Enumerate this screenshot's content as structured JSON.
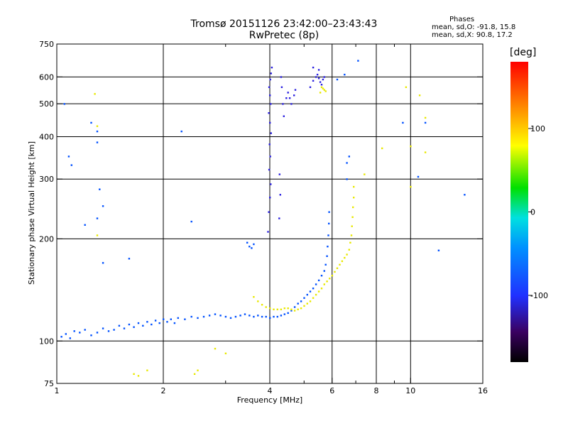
{
  "chart_data": {
    "type": "scatter",
    "title": "Tromsø 20151126 23:42:00–23:43:43",
    "subtitle": "RwPretec (8p)",
    "xlabel": "Frequency [MHz]",
    "ylabel": "Stationary phase Virtual Height [km]",
    "x_scale": "log",
    "y_scale": "log",
    "xlim": [
      1,
      16
    ],
    "ylim": [
      75,
      750
    ],
    "x_ticks": [
      1,
      2,
      4,
      6,
      8,
      10,
      16
    ],
    "x_tick_labels": [
      "1",
      "2",
      "4",
      "6",
      "8",
      "10",
      "16"
    ],
    "x_grid": [
      2,
      4,
      6,
      8,
      10
    ],
    "x_minor": [
      3,
      5,
      7,
      9
    ],
    "y_ticks": [
      75,
      100,
      200,
      300,
      400,
      500,
      600,
      750
    ],
    "y_tick_labels": [
      "75",
      "100",
      "200",
      "300",
      "400",
      "500",
      "600",
      "750"
    ],
    "y_grid": [
      100,
      200,
      300,
      400,
      500,
      600
    ],
    "grid": true,
    "phase_stats": {
      "heading": "Phases",
      "o_line": "mean, sd,O: -91.8, 15.8",
      "x_line": "mean, sd,X:  90.8, 17.2"
    },
    "colorbar": {
      "label": "[deg]",
      "range": [
        -180,
        180
      ],
      "ticks": [
        100,
        0,
        -100
      ],
      "tick_labels": [
        "100",
        "0",
        "-100"
      ],
      "colormap": "rainbow"
    },
    "traces": [
      {
        "kind": "O-mode F layer",
        "phase": -95,
        "points": [
          [
            1.03,
            103
          ],
          [
            1.06,
            105
          ],
          [
            1.09,
            102
          ],
          [
            1.12,
            107
          ],
          [
            1.16,
            106
          ],
          [
            1.2,
            108
          ],
          [
            1.25,
            104
          ],
          [
            1.3,
            106
          ],
          [
            1.35,
            109
          ],
          [
            1.4,
            107
          ],
          [
            1.45,
            108
          ],
          [
            1.5,
            111
          ],
          [
            1.55,
            109
          ],
          [
            1.6,
            112
          ],
          [
            1.65,
            110
          ],
          [
            1.7,
            113
          ],
          [
            1.75,
            111
          ],
          [
            1.8,
            114
          ],
          [
            1.85,
            112
          ],
          [
            1.9,
            115
          ],
          [
            1.95,
            113
          ],
          [
            2.0,
            116
          ],
          [
            2.05,
            114
          ],
          [
            2.1,
            116
          ],
          [
            2.15,
            113
          ],
          [
            2.2,
            117
          ],
          [
            2.3,
            116
          ],
          [
            2.4,
            118
          ],
          [
            2.5,
            117
          ],
          [
            2.6,
            118
          ],
          [
            2.7,
            119
          ],
          [
            2.8,
            120
          ],
          [
            2.9,
            119
          ],
          [
            3.0,
            118
          ],
          [
            3.1,
            117
          ],
          [
            3.2,
            118
          ],
          [
            3.3,
            119
          ],
          [
            3.4,
            120
          ],
          [
            3.5,
            119
          ],
          [
            3.6,
            118
          ],
          [
            3.7,
            119
          ],
          [
            3.8,
            118
          ],
          [
            3.9,
            118
          ],
          [
            4.0,
            117
          ],
          [
            4.1,
            118
          ],
          [
            4.2,
            118
          ],
          [
            4.3,
            119
          ],
          [
            4.4,
            120
          ],
          [
            4.5,
            121
          ],
          [
            4.6,
            123
          ],
          [
            4.7,
            126
          ],
          [
            4.8,
            129
          ],
          [
            4.9,
            131
          ],
          [
            5.0,
            134
          ],
          [
            5.1,
            137
          ],
          [
            5.2,
            140
          ],
          [
            5.3,
            143
          ],
          [
            5.4,
            147
          ],
          [
            5.5,
            151
          ],
          [
            5.6,
            156
          ],
          [
            5.7,
            161
          ],
          [
            5.75,
            168
          ],
          [
            5.8,
            178
          ],
          [
            5.82,
            190
          ],
          [
            5.85,
            205
          ],
          [
            5.87,
            222
          ],
          [
            5.88,
            240
          ]
        ]
      },
      {
        "kind": "X-mode F layer",
        "phase": 105,
        "points": [
          [
            3.6,
            135
          ],
          [
            3.7,
            131
          ],
          [
            3.8,
            128
          ],
          [
            3.9,
            126
          ],
          [
            4.0,
            125
          ],
          [
            4.1,
            124
          ],
          [
            4.2,
            124
          ],
          [
            4.3,
            124
          ],
          [
            4.4,
            125
          ],
          [
            4.5,
            125
          ],
          [
            4.6,
            124
          ],
          [
            4.7,
            123
          ],
          [
            4.8,
            124
          ],
          [
            4.9,
            125
          ],
          [
            5.0,
            127
          ],
          [
            5.1,
            129
          ],
          [
            5.2,
            131
          ],
          [
            5.3,
            134
          ],
          [
            5.4,
            137
          ],
          [
            5.5,
            140
          ],
          [
            5.6,
            143
          ],
          [
            5.7,
            147
          ],
          [
            5.8,
            150
          ],
          [
            5.9,
            153
          ],
          [
            6.0,
            156
          ],
          [
            6.1,
            160
          ],
          [
            6.2,
            164
          ],
          [
            6.3,
            168
          ],
          [
            6.4,
            172
          ],
          [
            6.5,
            176
          ],
          [
            6.6,
            180
          ],
          [
            6.7,
            186
          ],
          [
            6.75,
            195
          ],
          [
            6.8,
            205
          ],
          [
            6.82,
            218
          ],
          [
            6.85,
            232
          ],
          [
            6.87,
            248
          ],
          [
            6.9,
            265
          ],
          [
            6.9,
            285
          ]
        ]
      },
      {
        "kind": "O-mode spread F (vertical column)",
        "phase": -110,
        "points": [
          [
            3.95,
            210
          ],
          [
            3.97,
            240
          ],
          [
            4.0,
            265
          ],
          [
            4.02,
            290
          ],
          [
            3.98,
            320
          ],
          [
            4.01,
            350
          ],
          [
            3.99,
            380
          ],
          [
            4.03,
            410
          ],
          [
            4.0,
            440
          ],
          [
            3.97,
            470
          ],
          [
            4.02,
            500
          ],
          [
            4.0,
            530
          ],
          [
            3.98,
            560
          ],
          [
            4.01,
            590
          ],
          [
            4.03,
            615
          ],
          [
            4.05,
            640
          ],
          [
            4.25,
            230
          ],
          [
            4.28,
            270
          ],
          [
            4.26,
            310
          ],
          [
            4.3,
            600
          ],
          [
            4.32,
            560
          ],
          [
            4.35,
            500
          ],
          [
            4.38,
            460
          ],
          [
            4.45,
            520
          ],
          [
            4.5,
            540
          ],
          [
            4.55,
            520
          ],
          [
            4.6,
            500
          ],
          [
            4.68,
            530
          ],
          [
            4.72,
            550
          ]
        ]
      },
      {
        "kind": "upper echoes near 5.5 MHz",
        "phase": -105,
        "points": [
          [
            5.2,
            560
          ],
          [
            5.3,
            585
          ],
          [
            5.4,
            600
          ],
          [
            5.45,
            610
          ],
          [
            5.5,
            595
          ],
          [
            5.55,
            580
          ],
          [
            5.6,
            570
          ],
          [
            5.65,
            590
          ],
          [
            5.7,
            600
          ],
          [
            5.3,
            640
          ],
          [
            5.5,
            630
          ]
        ]
      },
      {
        "kind": "X-mode patch",
        "phase": 110,
        "points": [
          [
            5.55,
            540
          ],
          [
            5.6,
            560
          ],
          [
            5.65,
            555
          ],
          [
            5.7,
            550
          ],
          [
            5.75,
            545
          ]
        ]
      },
      {
        "kind": "sparse echoes",
        "phase": -90,
        "points": [
          [
            1.05,
            500
          ],
          [
            1.08,
            350
          ],
          [
            1.1,
            330
          ],
          [
            1.25,
            440
          ],
          [
            1.3,
            415
          ],
          [
            1.3,
            385
          ],
          [
            1.32,
            280
          ],
          [
            1.35,
            250
          ],
          [
            1.3,
            230
          ],
          [
            1.2,
            220
          ],
          [
            1.35,
            170
          ],
          [
            1.6,
            175
          ],
          [
            2.25,
            415
          ],
          [
            2.4,
            225
          ],
          [
            3.45,
            195
          ],
          [
            3.5,
            190
          ],
          [
            3.55,
            188
          ],
          [
            3.6,
            193
          ],
          [
            6.6,
            335
          ],
          [
            6.7,
            350
          ],
          [
            6.6,
            300
          ],
          [
            7.1,
            670
          ],
          [
            9.5,
            440
          ],
          [
            10.5,
            305
          ],
          [
            11.0,
            440
          ],
          [
            12.0,
            185
          ],
          [
            14.2,
            270
          ],
          [
            6.2,
            590
          ],
          [
            6.5,
            610
          ]
        ]
      },
      {
        "kind": "sparse X echoes",
        "phase": 95,
        "points": [
          [
            1.28,
            535
          ],
          [
            1.3,
            430
          ],
          [
            1.3,
            205
          ],
          [
            1.65,
            80
          ],
          [
            1.7,
            79
          ],
          [
            1.8,
            82
          ],
          [
            2.45,
            80
          ],
          [
            2.5,
            82
          ],
          [
            2.8,
            95
          ],
          [
            3.0,
            92
          ],
          [
            8.3,
            370
          ],
          [
            9.7,
            560
          ],
          [
            10.0,
            375
          ],
          [
            10.6,
            530
          ],
          [
            11.0,
            455
          ],
          [
            11.0,
            360
          ],
          [
            10.0,
            285
          ],
          [
            7.4,
            310
          ]
        ]
      }
    ]
  }
}
